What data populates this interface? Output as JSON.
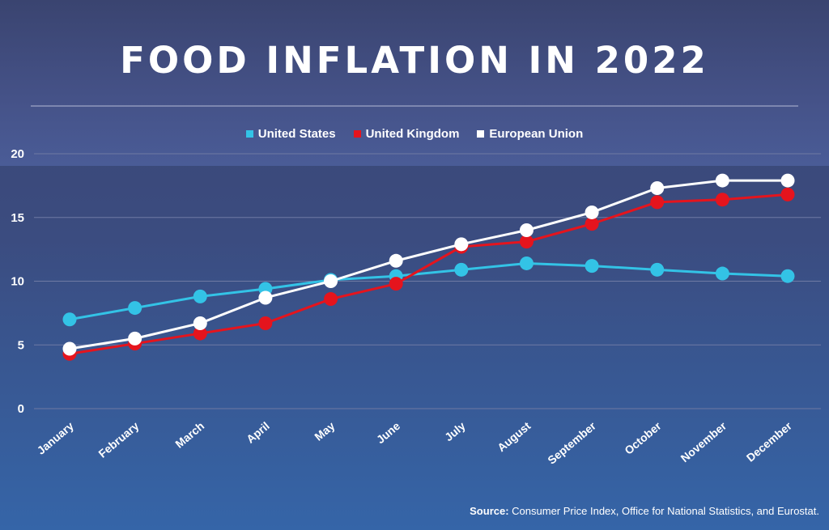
{
  "title": "FOOD INFLATION IN 2022",
  "source_label": "Source:",
  "source_text": "Consumer Price Index, Office for National Statistics, and Eurostat.",
  "colors": {
    "us": "#33c3e6",
    "uk": "#e5141d",
    "eu": "#ffffff",
    "grid": "#6f7aa3"
  },
  "chart_data": {
    "type": "line",
    "title": "FOOD INFLATION IN 2022",
    "xlabel": "",
    "ylabel": "",
    "ylim": [
      0,
      20
    ],
    "yticks": [
      0,
      5,
      10,
      15,
      20
    ],
    "grid": true,
    "legend_position": "top-center",
    "categories": [
      "January",
      "February",
      "March",
      "April",
      "May",
      "June",
      "July",
      "August",
      "September",
      "October",
      "November",
      "December"
    ],
    "series": [
      {
        "name": "United States",
        "color": "#33c3e6",
        "values": [
          7.0,
          7.9,
          8.8,
          9.4,
          10.1,
          10.4,
          10.9,
          11.4,
          11.2,
          10.9,
          10.6,
          10.4
        ]
      },
      {
        "name": "United Kingdom",
        "color": "#e5141d",
        "values": [
          4.3,
          5.1,
          5.9,
          6.7,
          8.6,
          9.8,
          12.7,
          13.1,
          14.5,
          16.2,
          16.4,
          16.8
        ]
      },
      {
        "name": "European Union",
        "color": "#ffffff",
        "values": [
          4.7,
          5.5,
          6.7,
          8.7,
          10.0,
          11.6,
          12.9,
          14.0,
          15.4,
          17.3,
          17.9,
          17.9
        ]
      }
    ]
  }
}
